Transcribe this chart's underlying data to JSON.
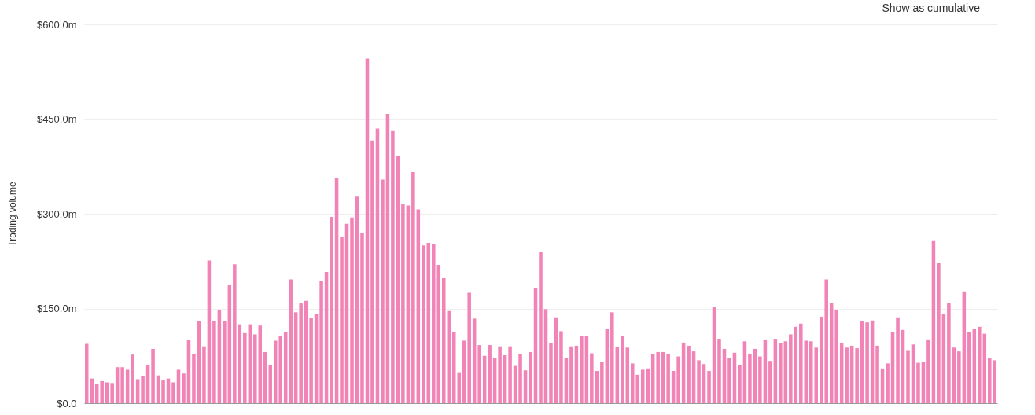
{
  "chart_data": {
    "type": "bar",
    "ylabel": "Trading volume",
    "annotations": [
      "Show as cumulative"
    ],
    "categories": [
      null,
      null,
      null,
      null,
      null,
      null,
      null,
      null,
      null,
      null,
      null,
      null,
      null,
      null,
      null,
      null,
      null,
      null,
      null,
      null,
      null,
      null,
      null,
      null,
      null,
      null,
      null,
      null,
      null,
      null,
      null,
      null,
      null,
      null,
      null,
      null,
      null,
      null,
      null,
      null,
      null,
      null,
      null,
      null,
      null,
      null,
      null,
      null,
      null,
      null,
      null,
      null,
      null,
      null,
      null,
      null,
      null,
      null,
      null,
      null,
      null,
      null,
      null,
      null,
      null,
      null,
      null,
      null,
      null,
      null,
      null,
      null,
      null,
      null,
      null,
      null,
      null,
      null,
      null,
      null,
      null,
      null,
      null,
      null,
      null,
      null,
      null,
      null,
      null,
      null,
      null,
      null,
      null,
      null,
      null,
      null,
      null,
      null,
      null,
      null,
      null,
      null,
      null,
      null,
      null,
      null,
      null,
      null,
      null,
      null,
      null,
      null,
      null,
      null,
      null,
      null,
      null,
      null,
      null,
      null,
      null,
      null,
      null,
      null,
      null,
      null,
      null,
      null,
      null,
      null,
      null,
      null,
      null,
      null,
      null,
      null,
      null,
      null,
      null,
      null,
      null,
      null,
      null,
      null,
      null,
      null,
      null,
      null,
      null,
      null,
      null,
      null,
      null,
      null,
      null,
      null,
      null,
      null,
      null,
      null,
      null,
      null,
      null,
      null,
      null,
      null,
      null,
      null,
      null,
      null,
      null,
      null,
      null,
      null,
      null,
      null,
      null,
      null,
      null
    ],
    "values": [
      94,
      39,
      30,
      35,
      33,
      32,
      57,
      57,
      53,
      77,
      38,
      43,
      61,
      86,
      44,
      36,
      39,
      33,
      53,
      47,
      100,
      78,
      130,
      90,
      226,
      130,
      147,
      130,
      187,
      220,
      125,
      111,
      125,
      109,
      123,
      81,
      60,
      99,
      107,
      113,
      196,
      144,
      158,
      162,
      135,
      141,
      193,
      208,
      295,
      357,
      264,
      284,
      294,
      327,
      270,
      546,
      416,
      435,
      354,
      458,
      431,
      391,
      315,
      313,
      366,
      307,
      250,
      254,
      252,
      219,
      198,
      146,
      113,
      49,
      99,
      175,
      134,
      92,
      75,
      92,
      72,
      90,
      76,
      90,
      59,
      78,
      52,
      81,
      183,
      240,
      149,
      95,
      136,
      114,
      72,
      90,
      91,
      107,
      106,
      79,
      51,
      66,
      118,
      144,
      89,
      107,
      88,
      63,
      45,
      53,
      55,
      78,
      81,
      81,
      78,
      51,
      74,
      96,
      91,
      82,
      68,
      62,
      51,
      152,
      102,
      86,
      72,
      80,
      60,
      98,
      78,
      86,
      74,
      101,
      67,
      102,
      95,
      98,
      109,
      121,
      126,
      99,
      98,
      88,
      137,
      196,
      159,
      147,
      95,
      88,
      91,
      87,
      130,
      128,
      131,
      91,
      55,
      63,
      113,
      136,
      116,
      84,
      93,
      64,
      66,
      101,
      258,
      222,
      141,
      159,
      88,
      82,
      177,
      113,
      118,
      121,
      110,
      72,
      68
    ],
    "color": "#f283b6",
    "ylim": [
      0,
      600
    ],
    "yticks": [
      {
        "value": 0,
        "label": "$0.0"
      },
      {
        "value": 150,
        "label": "$150.0m"
      },
      {
        "value": 300,
        "label": "$300.0m"
      },
      {
        "value": 450,
        "label": "$450.0m"
      },
      {
        "value": 600,
        "label": "$600.0m"
      }
    ],
    "grid": "y",
    "tick_labels": "y"
  }
}
